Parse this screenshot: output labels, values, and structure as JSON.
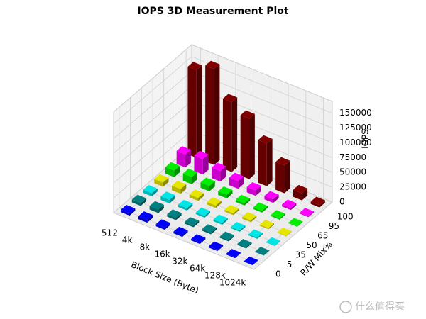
{
  "chart_data": {
    "type": "bar3d",
    "title": "IOPS 3D Measurement Plot",
    "x_label": "Block Size (Byte)",
    "y_label": "R/W Mix%",
    "z_label": "IOPS",
    "categories": [
      "512",
      "4k",
      "8k",
      "16k",
      "32k",
      "64k",
      "128k",
      "1024k"
    ],
    "series": [
      {
        "name": "0",
        "color": "#0000ff",
        "values": [
          4000,
          5000,
          3500,
          3000,
          2500,
          2000,
          1500,
          600
        ]
      },
      {
        "name": "5",
        "color": "#008080",
        "values": [
          5000,
          6000,
          4000,
          3000,
          3000,
          2500,
          2000,
          700
        ]
      },
      {
        "name": "35",
        "color": "#00e5e5",
        "values": [
          5000,
          6000,
          4000,
          3000,
          3000,
          2500,
          2000,
          700
        ]
      },
      {
        "name": "50",
        "color": "#e6e600",
        "values": [
          7000,
          8000,
          5000,
          4000,
          3000,
          3000,
          2000,
          700
        ]
      },
      {
        "name": "65",
        "color": "#00ee00",
        "values": [
          11000,
          12000,
          9000,
          6000,
          4000,
          3000,
          2000,
          800
        ]
      },
      {
        "name": "95",
        "color": "#ff00ff",
        "values": [
          22000,
          26000,
          18000,
          13000,
          9000,
          6000,
          3500,
          1500
        ]
      },
      {
        "name": "100",
        "color": "#800000",
        "values": [
          148000,
          162000,
          118000,
          102000,
          72000,
          47000,
          12000,
          4000
        ]
      }
    ],
    "zlim": [
      0,
      170000
    ],
    "zticks": [
      0,
      25000,
      50000,
      75000,
      100000,
      125000,
      150000
    ],
    "grid": true,
    "watermark": "什么值得买"
  }
}
